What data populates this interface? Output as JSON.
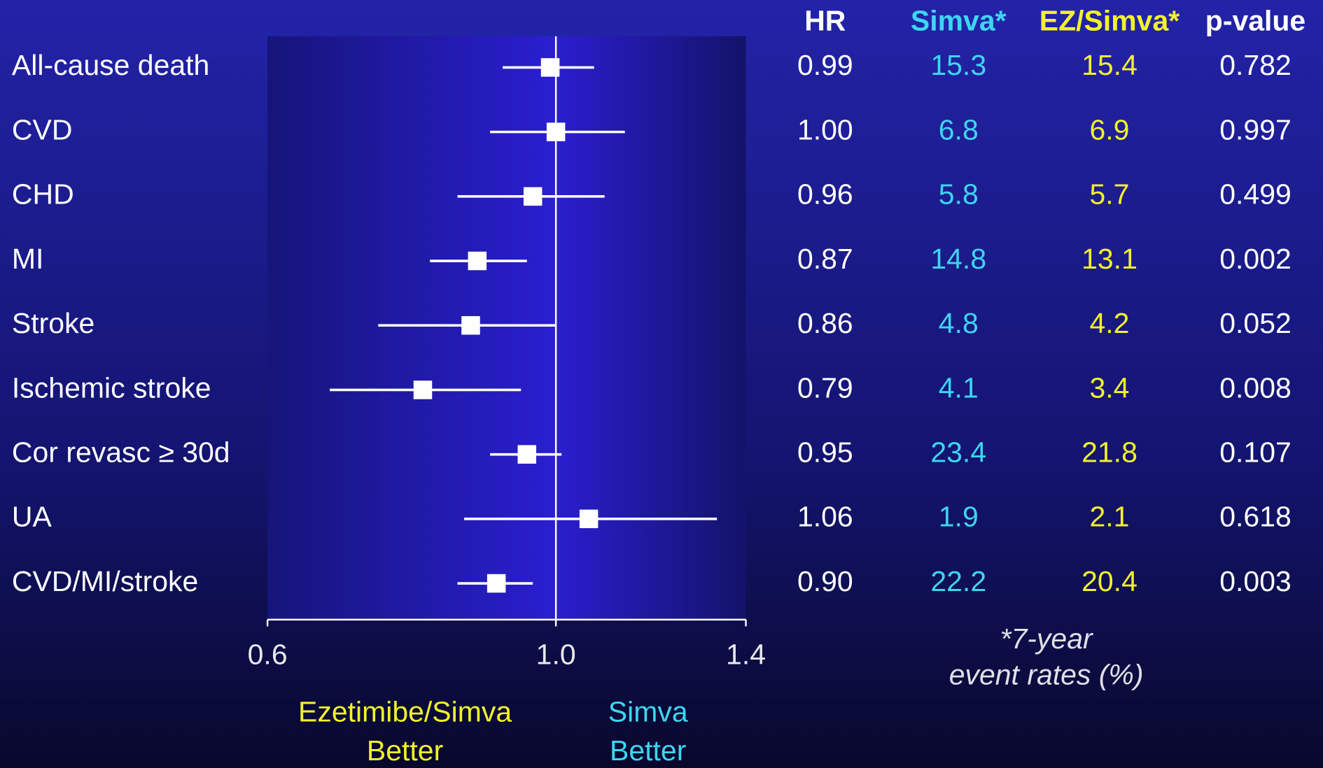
{
  "chart_data": {
    "type": "forest",
    "log_scale": true,
    "categories": [
      "All-cause death",
      "CVD",
      "CHD",
      "MI",
      "Stroke",
      "Ischemic stroke",
      "Cor revasc ≥ 30d",
      "UA",
      "CVD/MI/stroke"
    ],
    "values": [
      0.99,
      1.0,
      0.96,
      0.87,
      0.86,
      0.79,
      0.95,
      1.06,
      0.9
    ],
    "value_labels": [
      "0.99",
      "1.00",
      "0.96",
      "0.87",
      "0.86",
      "0.79",
      "0.95",
      "1.06",
      "0.90"
    ],
    "lower": [
      0.91,
      0.89,
      0.84,
      0.8,
      0.73,
      0.67,
      0.89,
      0.85,
      0.84
    ],
    "upper": [
      1.07,
      1.13,
      1.09,
      0.95,
      1.0,
      0.94,
      1.01,
      1.33,
      0.96
    ],
    "color": "#ffffff",
    "xlim": [
      0.6,
      1.4
    ],
    "xticks": [
      0.6,
      {
        "value": 1.0,
        "label": "1.0"
      },
      1.4
    ],
    "left_label": [
      "Ezetimibe/Simva",
      "Better"
    ],
    "left_label_color": "#f2f22a",
    "right_label": [
      "Simva",
      "Better"
    ],
    "right_label_color": "#3cd6f0"
  },
  "table": {
    "headers": [
      "HR",
      "Simva*",
      "EZ/Simva*",
      "p-value"
    ],
    "header_colors": [
      "#ffffff",
      "#3cd6f0",
      "#f2f22a",
      "#ffffff"
    ],
    "simva": [
      "15.3",
      "6.8",
      "5.8",
      "14.8",
      "4.8",
      "4.1",
      "23.4",
      "1.9",
      "22.2"
    ],
    "ez_simva": [
      "15.4",
      "6.9",
      "5.7",
      "13.1",
      "4.2",
      "3.4",
      "21.8",
      "2.1",
      "20.4"
    ],
    "p_value": [
      "0.782",
      "0.997",
      "0.499",
      "0.002",
      "0.052",
      "0.008",
      "0.107",
      "0.618",
      "0.003"
    ],
    "footnote": [
      "*7-year",
      "event rates (%)"
    ]
  }
}
